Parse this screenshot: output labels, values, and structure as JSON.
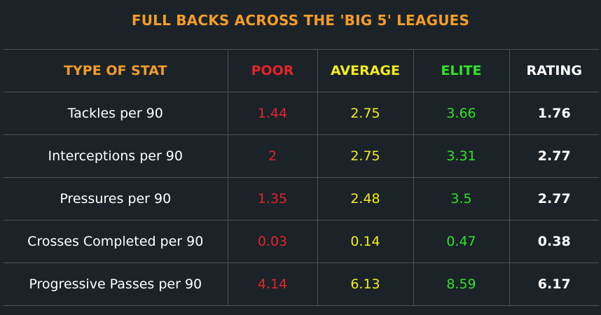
{
  "title": "FULL BACKS ACROSS THE 'BIG 5' LEAGUES",
  "colors": {
    "background": "#1b2328",
    "title": "#f39c2b",
    "poor": "#e3242b",
    "average": "#f4ec1f",
    "elite": "#33e02b",
    "rating": "#ffffff"
  },
  "chart_data": {
    "type": "table",
    "title": "FULL BACKS ACROSS THE 'BIG 5' LEAGUES",
    "columns": [
      "TYPE OF STAT",
      "POOR",
      "AVERAGE",
      "ELITE",
      "RATING"
    ],
    "rows": [
      {
        "stat": "Tackles per 90",
        "poor": "1.44",
        "average": "2.75",
        "elite": "3.66",
        "rating": "1.76"
      },
      {
        "stat": "Interceptions per 90",
        "poor": "2",
        "average": "2.75",
        "elite": "3.31",
        "rating": "2.77"
      },
      {
        "stat": "Pressures per 90",
        "poor": "1.35",
        "average": "2.48",
        "elite": "3.5",
        "rating": "2.77"
      },
      {
        "stat": "Crosses Completed per 90",
        "poor": "0.03",
        "average": "0.14",
        "elite": "0.47",
        "rating": "0.38"
      },
      {
        "stat": "Progressive Passes per 90",
        "poor": "4.14",
        "average": "6.13",
        "elite": "8.59",
        "rating": "6.17"
      }
    ]
  }
}
